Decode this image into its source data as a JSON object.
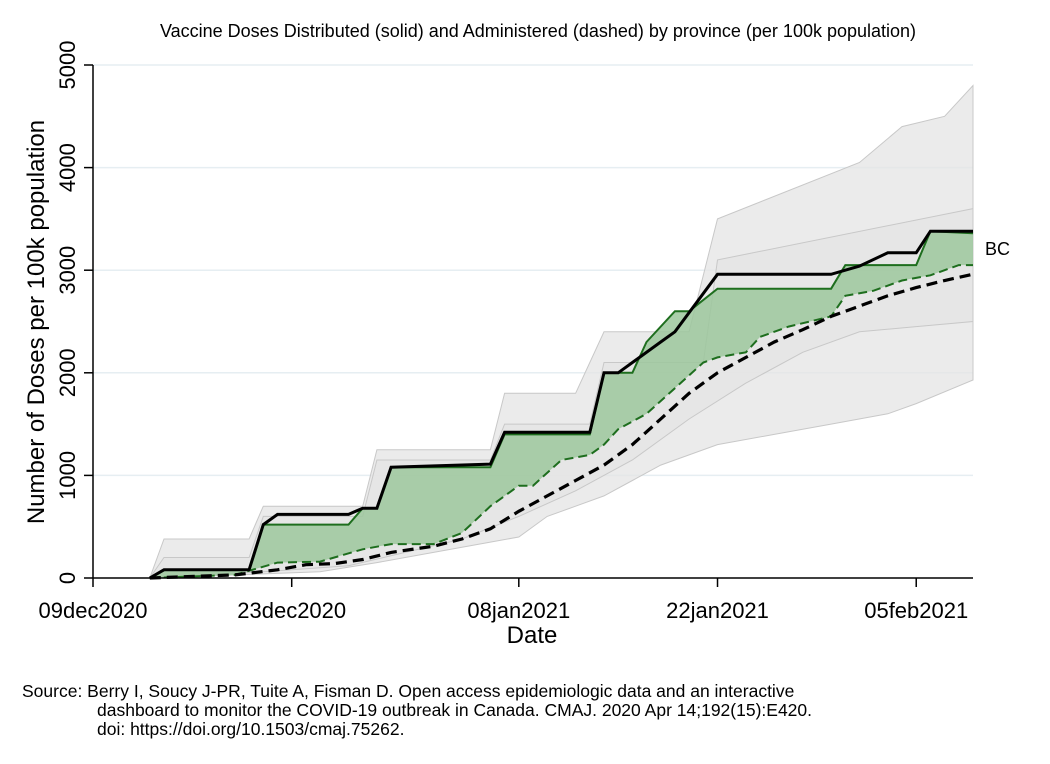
{
  "chart_data": {
    "type": "line",
    "title": "Vaccine Doses Distributed (solid) and Administered (dashed) by province (per 100k population)",
    "xlabel": "Date",
    "ylabel": "Number of Doses per 100k population",
    "x_tick_labels": [
      "09dec2020",
      "23dec2020",
      "08jan2021",
      "22jan2021",
      "05feb2021"
    ],
    "x_tick_days": [
      0,
      14,
      30,
      44,
      58
    ],
    "y_ticks": [
      0,
      1000,
      2000,
      3000,
      4000,
      5000
    ],
    "ylim": [
      0,
      5000
    ],
    "xlim_days": [
      0,
      62
    ],
    "grid": true,
    "highlight_label": "BC",
    "colors": {
      "distributed": "#000000",
      "administered": "#000000",
      "band_fill": "#9cc79c",
      "band_edge": "#1e6e1e",
      "other_fill": "#e4e4e4",
      "other_line": "#c8c8c8",
      "grid": "#e6eef2"
    },
    "series": [
      {
        "label": "BC distributed",
        "style": "solid",
        "points": [
          [
            4,
            0
          ],
          [
            5,
            80
          ],
          [
            11,
            80
          ],
          [
            12,
            520
          ],
          [
            13,
            620
          ],
          [
            18,
            620
          ],
          [
            19,
            680
          ],
          [
            20,
            680
          ],
          [
            21,
            1080
          ],
          [
            28,
            1110
          ],
          [
            29,
            1420
          ],
          [
            35,
            1420
          ],
          [
            36,
            2000
          ],
          [
            37,
            2000
          ],
          [
            38,
            2100
          ],
          [
            40,
            2300
          ],
          [
            41,
            2400
          ],
          [
            44,
            2960
          ],
          [
            52,
            2960
          ],
          [
            54,
            3040
          ],
          [
            56,
            3170
          ],
          [
            58,
            3170
          ],
          [
            59,
            3380
          ],
          [
            62,
            3380
          ]
        ]
      },
      {
        "label": "BC administered",
        "style": "dashed",
        "points": [
          [
            4,
            0
          ],
          [
            10,
            30
          ],
          [
            13,
            80
          ],
          [
            15,
            130
          ],
          [
            17,
            140
          ],
          [
            19,
            180
          ],
          [
            21,
            250
          ],
          [
            24,
            310
          ],
          [
            26,
            380
          ],
          [
            28,
            480
          ],
          [
            30,
            650
          ],
          [
            32,
            800
          ],
          [
            34,
            950
          ],
          [
            36,
            1100
          ],
          [
            38,
            1300
          ],
          [
            40,
            1550
          ],
          [
            42,
            1800
          ],
          [
            44,
            2000
          ],
          [
            46,
            2150
          ],
          [
            48,
            2300
          ],
          [
            50,
            2420
          ],
          [
            52,
            2550
          ],
          [
            54,
            2650
          ],
          [
            56,
            2750
          ],
          [
            58,
            2830
          ],
          [
            60,
            2900
          ],
          [
            62,
            2960
          ]
        ]
      },
      {
        "label": "Green upper edge",
        "style": "band-upper",
        "points": [
          [
            4,
            0
          ],
          [
            5,
            80
          ],
          [
            11,
            80
          ],
          [
            12,
            520
          ],
          [
            18,
            520
          ],
          [
            19,
            680
          ],
          [
            20,
            680
          ],
          [
            21,
            1080
          ],
          [
            28,
            1080
          ],
          [
            29,
            1400
          ],
          [
            35,
            1400
          ],
          [
            36,
            2000
          ],
          [
            38,
            2000
          ],
          [
            39,
            2300
          ],
          [
            41,
            2600
          ],
          [
            42,
            2600
          ],
          [
            44,
            2820
          ],
          [
            52,
            2820
          ],
          [
            53,
            3050
          ],
          [
            58,
            3050
          ],
          [
            59,
            3380
          ],
          [
            62,
            3360
          ]
        ]
      },
      {
        "label": "Green lower edge",
        "style": "band-lower",
        "points": [
          [
            4,
            0
          ],
          [
            10,
            30
          ],
          [
            13,
            150
          ],
          [
            16,
            160
          ],
          [
            17,
            200
          ],
          [
            19,
            280
          ],
          [
            21,
            330
          ],
          [
            24,
            330
          ],
          [
            26,
            440
          ],
          [
            28,
            700
          ],
          [
            30,
            900
          ],
          [
            31,
            900
          ],
          [
            33,
            1150
          ],
          [
            35,
            1200
          ],
          [
            36,
            1300
          ],
          [
            37,
            1450
          ],
          [
            39,
            1600
          ],
          [
            41,
            1850
          ],
          [
            43,
            2100
          ],
          [
            44,
            2150
          ],
          [
            46,
            2200
          ],
          [
            47,
            2350
          ],
          [
            49,
            2450
          ],
          [
            52,
            2550
          ],
          [
            53,
            2750
          ],
          [
            55,
            2800
          ],
          [
            57,
            2900
          ],
          [
            59,
            2950
          ],
          [
            61,
            3050
          ],
          [
            62,
            3050
          ]
        ]
      }
    ],
    "other_provinces": [
      {
        "upper": [
          [
            5,
            380
          ],
          [
            11,
            380
          ],
          [
            12,
            700
          ],
          [
            19,
            700
          ],
          [
            20,
            1250
          ],
          [
            28,
            1250
          ],
          [
            29,
            1800
          ],
          [
            34,
            1800
          ],
          [
            36,
            2400
          ],
          [
            42,
            2400
          ],
          [
            44,
            3500
          ],
          [
            54,
            4050
          ],
          [
            57,
            4400
          ],
          [
            60,
            4500
          ],
          [
            62,
            4800
          ]
        ],
        "lower": [
          [
            4,
            0
          ],
          [
            12,
            40
          ],
          [
            16,
            60
          ],
          [
            20,
            150
          ],
          [
            24,
            250
          ],
          [
            28,
            350
          ],
          [
            30,
            400
          ],
          [
            32,
            600
          ],
          [
            34,
            700
          ],
          [
            36,
            800
          ],
          [
            38,
            950
          ],
          [
            40,
            1100
          ],
          [
            42,
            1200
          ],
          [
            44,
            1300
          ],
          [
            48,
            1400
          ],
          [
            52,
            1500
          ],
          [
            56,
            1600
          ],
          [
            58,
            1700
          ],
          [
            62,
            1930
          ]
        ]
      },
      {
        "upper": [
          [
            4,
            0
          ],
          [
            5,
            200
          ],
          [
            11,
            200
          ],
          [
            12,
            600
          ],
          [
            19,
            600
          ],
          [
            20,
            1150
          ],
          [
            28,
            1150
          ],
          [
            29,
            1500
          ],
          [
            35,
            1500
          ],
          [
            36,
            2100
          ],
          [
            43,
            2100
          ],
          [
            44,
            3100
          ],
          [
            62,
            3600
          ]
        ],
        "lower": [
          [
            4,
            0
          ],
          [
            12,
            60
          ],
          [
            18,
            120
          ],
          [
            22,
            250
          ],
          [
            26,
            380
          ],
          [
            30,
            600
          ],
          [
            34,
            850
          ],
          [
            38,
            1150
          ],
          [
            42,
            1550
          ],
          [
            46,
            1900
          ],
          [
            50,
            2200
          ],
          [
            54,
            2400
          ],
          [
            58,
            2450
          ],
          [
            62,
            2500
          ]
        ]
      }
    ]
  },
  "source": {
    "line1": "Source: Berry I, Soucy J-PR, Tuite A, Fisman D. Open access epidemiologic data and an interactive",
    "line2": "dashboard to monitor the COVID-19 outbreak in Canada. CMAJ. 2020 Apr 14;192(15):E420.",
    "line3": "doi: https://doi.org/10.1503/cmaj.75262."
  }
}
